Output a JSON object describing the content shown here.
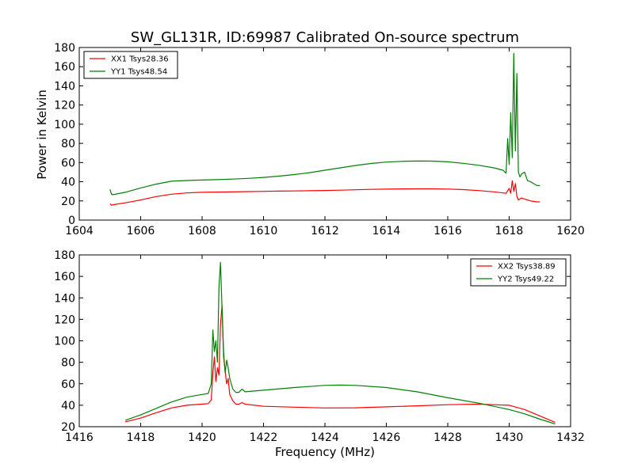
{
  "title": "SW_GL131R, ID:69987 Calibrated On-source spectrum",
  "colors": {
    "xx": "#ff0000",
    "yy": "#008000"
  },
  "chart_data": [
    {
      "type": "line",
      "title": "SW_GL131R, ID:69987 Calibrated On-source spectrum",
      "xlabel": "",
      "ylabel": "Power in Kelvin",
      "xlim": [
        1604,
        1620
      ],
      "ylim": [
        0,
        180
      ],
      "xticks": [
        1604,
        1606,
        1608,
        1610,
        1612,
        1614,
        1616,
        1618,
        1620
      ],
      "yticks": [
        0,
        20,
        40,
        60,
        80,
        100,
        120,
        140,
        160,
        180
      ],
      "grid": false,
      "legend_position": "top-left",
      "series": [
        {
          "name": "XX1 Tsys28.36",
          "color": "#ff0000",
          "x": [
            1605.0,
            1605.05,
            1605.1,
            1605.5,
            1606.0,
            1606.5,
            1607.0,
            1607.5,
            1608.0,
            1608.5,
            1609.0,
            1609.5,
            1610.0,
            1610.5,
            1611.0,
            1611.5,
            1612.0,
            1612.5,
            1613.0,
            1613.5,
            1614.0,
            1614.5,
            1615.0,
            1615.5,
            1616.0,
            1616.5,
            1617.0,
            1617.5,
            1617.9,
            1618.0,
            1618.05,
            1618.1,
            1618.15,
            1618.2,
            1618.25,
            1618.3,
            1618.4,
            1618.5,
            1618.6,
            1618.7,
            1618.8,
            1618.9,
            1619.0
          ],
          "values": [
            17,
            15.5,
            16,
            18,
            21,
            24.5,
            27,
            28.3,
            29,
            29.2,
            29.4,
            29.7,
            30,
            30.2,
            30.4,
            30.6,
            30.9,
            31.2,
            31.6,
            32,
            32.3,
            32.5,
            32.6,
            32.6,
            32.4,
            31.8,
            30.8,
            29.5,
            28,
            33,
            28,
            41,
            30,
            38,
            25,
            21,
            23,
            22,
            21,
            20,
            19.5,
            19,
            19
          ]
        },
        {
          "name": "YY1 Tsys48.54",
          "color": "#008000",
          "x": [
            1605.0,
            1605.05,
            1605.1,
            1605.5,
            1606.0,
            1606.5,
            1607.0,
            1607.5,
            1608.0,
            1608.5,
            1609.0,
            1609.5,
            1610.0,
            1610.5,
            1611.0,
            1611.5,
            1612.0,
            1612.5,
            1613.0,
            1613.5,
            1614.0,
            1614.5,
            1615.0,
            1615.5,
            1616.0,
            1616.5,
            1617.0,
            1617.5,
            1617.8,
            1617.9,
            1617.95,
            1618.0,
            1618.05,
            1618.1,
            1618.15,
            1618.2,
            1618.25,
            1618.3,
            1618.35,
            1618.4,
            1618.5,
            1618.6,
            1618.7,
            1618.8,
            1618.9,
            1619.0
          ],
          "values": [
            32,
            27,
            26.5,
            29,
            33.5,
            37.5,
            40.5,
            41.3,
            41.8,
            42.2,
            42.8,
            43.5,
            44.5,
            45.8,
            47.5,
            49.5,
            52,
            54.5,
            57,
            59,
            60.5,
            61.3,
            61.6,
            61.5,
            60.8,
            59.2,
            57.2,
            54.5,
            52,
            49,
            85,
            58,
            112,
            65,
            174,
            72,
            153,
            50,
            45,
            48,
            50,
            41,
            40,
            38,
            36,
            36
          ]
        }
      ]
    },
    {
      "type": "line",
      "title": "",
      "xlabel": "Frequency (MHz)",
      "ylabel": "",
      "xlim": [
        1416,
        1432
      ],
      "ylim": [
        20,
        180
      ],
      "xticks": [
        1416,
        1418,
        1420,
        1422,
        1424,
        1426,
        1428,
        1430,
        1432
      ],
      "yticks": [
        20,
        40,
        60,
        80,
        100,
        120,
        140,
        160,
        180
      ],
      "grid": false,
      "legend_position": "top-right",
      "series": [
        {
          "name": "XX2 Tsys38.89",
          "color": "#ff0000",
          "x": [
            1417.5,
            1418.0,
            1418.5,
            1419.0,
            1419.5,
            1420.0,
            1420.2,
            1420.3,
            1420.35,
            1420.4,
            1420.45,
            1420.5,
            1420.55,
            1420.6,
            1420.65,
            1420.7,
            1420.75,
            1420.8,
            1420.85,
            1420.9,
            1421.0,
            1421.1,
            1421.2,
            1421.3,
            1421.4,
            1422.0,
            1423.0,
            1424.0,
            1425.0,
            1426.0,
            1427.0,
            1428.0,
            1429.0,
            1430.0,
            1430.5,
            1431.0,
            1431.5
          ],
          "values": [
            24.5,
            28,
            33,
            37.5,
            40,
            41,
            41.5,
            45,
            70,
            85,
            62,
            75,
            68,
            115,
            133,
            85,
            72,
            60,
            65,
            50,
            44,
            41,
            41,
            42.5,
            41,
            39,
            38.2,
            37.5,
            37.6,
            38.5,
            39.5,
            40.5,
            41,
            40,
            36,
            30,
            24
          ]
        },
        {
          "name": "YY2 Tsys49.22",
          "color": "#008000",
          "x": [
            1417.5,
            1418.0,
            1418.5,
            1419.0,
            1419.5,
            1420.0,
            1420.2,
            1420.3,
            1420.35,
            1420.4,
            1420.45,
            1420.5,
            1420.55,
            1420.6,
            1420.65,
            1420.7,
            1420.75,
            1420.8,
            1420.85,
            1420.9,
            1421.0,
            1421.1,
            1421.2,
            1421.3,
            1421.4,
            1422.0,
            1423.0,
            1424.0,
            1424.5,
            1425.0,
            1426.0,
            1427.0,
            1428.0,
            1429.0,
            1430.0,
            1430.5,
            1431.0,
            1431.5
          ],
          "values": [
            26,
            31,
            37,
            43,
            47.5,
            50,
            51,
            60,
            110,
            90,
            100,
            80,
            150,
            173,
            130,
            90,
            70,
            82,
            75,
            65,
            55,
            52,
            52,
            55,
            52.5,
            54,
            56.5,
            58.5,
            58.8,
            58.5,
            56.5,
            52.5,
            47,
            42,
            36,
            32,
            27,
            22.5
          ]
        }
      ]
    }
  ]
}
